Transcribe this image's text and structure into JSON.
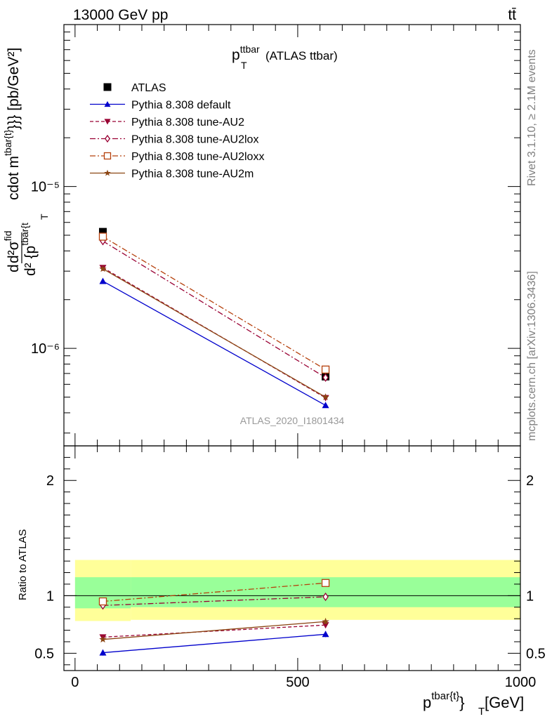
{
  "header": {
    "energy": "13000 GeV pp",
    "process": "tt̄",
    "side_rivet": "Rivet 3.1.10, ≥ 2.1M events",
    "side_mcplots": "mcplots.cern.ch [arXiv:1306.3436]",
    "analysis_id": "ATLAS_2020_I1801434"
  },
  "chart_data": [
    {
      "type": "line",
      "panel": "main",
      "title": {
        "base": "p",
        "sub": "T",
        "sup": "ttbar",
        "rest": " (ATLAS ttbar)"
      },
      "ylabel": "d d²σ^fid / d² {p_T^tbar{t}} cdot m^tbar{t}}} [pb/GeV²]",
      "ylabel_parts": {
        "d": "d",
        "sigma": "d²σ",
        "sigma_sup": "fid",
        "denom": "d² {p",
        "denom_sup": "tbar{t",
        "denom_sub": "T",
        "mid": "cdot m",
        "mid_sup": "tbar{t}",
        "tail": "}}} [pb/GeV²]"
      },
      "yscale": "log",
      "ylim": [
        2.5e-07,
        0.0001
      ],
      "ytick_labels": {
        "1e-5": "10⁻⁵",
        "1e-6": "10⁻⁶"
      },
      "legend_position": "top-left",
      "x": [
        62.5,
        562.5
      ],
      "series": [
        {
          "name": "ATLAS",
          "color": "#000000",
          "marker": "square-filled",
          "line": "none",
          "values": [
            5.25e-06,
            6.7e-07
          ]
        },
        {
          "name": "Pythia 8.308 default",
          "color": "#0000cc",
          "marker": "triangle-up-filled",
          "line": "solid",
          "values": [
            2.6e-06,
            4.45e-07
          ]
        },
        {
          "name": "Pythia 8.308 tune-AU2",
          "color": "#990033",
          "marker": "triangle-down-filled",
          "line": "dashed",
          "values": [
            3.15e-06,
            4.95e-07
          ]
        },
        {
          "name": "Pythia 8.308 tune-AU2lox",
          "color": "#990033",
          "marker": "diamond-open",
          "line": "dashdot",
          "values": [
            4.6e-06,
            6.6e-07
          ]
        },
        {
          "name": "Pythia 8.308 tune-AU2loxx",
          "color": "#b5400c",
          "marker": "square-open",
          "line": "dashdot",
          "values": [
            4.9e-06,
            7.4e-07
          ]
        },
        {
          "name": "Pythia 8.308 tune-AU2m",
          "color": "#8b4513",
          "marker": "star",
          "line": "solid",
          "values": [
            3.1e-06,
            5e-07
          ]
        }
      ]
    },
    {
      "type": "line",
      "panel": "ratio",
      "ylabel": "Ratio to ATLAS",
      "xlabel": {
        "base": "p",
        "sup": "tbar{t}",
        "rest": "}",
        "sub": "T",
        "unit": " [GeV]"
      },
      "ylim": [
        0.35,
        2.3
      ],
      "xlim": [
        -25,
        1000
      ],
      "yticks": [
        0.5,
        1,
        2
      ],
      "ytick_labels": [
        "0.5",
        "1",
        "2"
      ],
      "xticks": [
        0,
        500,
        1000
      ],
      "xtick_labels": [
        "0",
        "500",
        "1000"
      ],
      "reference": 1.0,
      "bands": {
        "stat": {
          "color": "#99ff99",
          "bins": [
            {
              "x": [
                0,
                125
              ],
              "low": 0.89,
              "high": 1.16
            },
            {
              "x": [
                125,
                1000
              ],
              "low": 0.9,
              "high": 1.16
            }
          ]
        },
        "total": {
          "color": "#ffff99",
          "bins": [
            {
              "x": [
                0,
                125
              ],
              "low": 0.78,
              "high": 1.31
            },
            {
              "x": [
                125,
                1000
              ],
              "low": 0.79,
              "high": 1.31
            }
          ]
        }
      },
      "x": [
        62.5,
        562.5
      ],
      "series": [
        {
          "name": "Pythia 8.308 default",
          "values": [
            0.505,
            0.665
          ],
          "errors": [
            0.025,
            0.025
          ]
        },
        {
          "name": "Pythia 8.308 tune-AU2",
          "values": [
            0.64,
            0.745
          ],
          "errors": [
            0.015,
            0.025
          ]
        },
        {
          "name": "Pythia 8.308 tune-AU2lox",
          "values": [
            0.915,
            0.99
          ],
          "errors": [
            0.02,
            0.02
          ]
        },
        {
          "name": "Pythia 8.308 tune-AU2loxx",
          "values": [
            0.95,
            1.11
          ],
          "errors": [
            0.015,
            0.015
          ]
        },
        {
          "name": "Pythia 8.308 tune-AU2m",
          "values": [
            0.62,
            0.775
          ],
          "errors": [
            0.015,
            0.02
          ]
        }
      ]
    }
  ]
}
